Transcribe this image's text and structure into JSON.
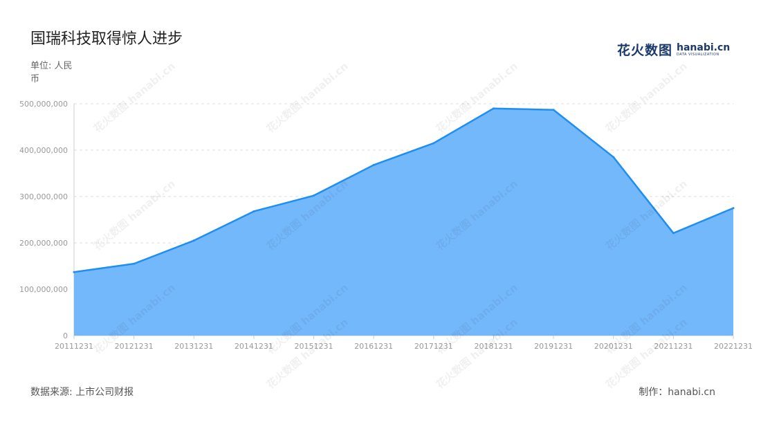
{
  "title": "国瑞科技取得惊人进步",
  "unit": "单位: 人民币",
  "source": "数据来源: 上市公司财报",
  "maker": "制作：hanabi.cn",
  "logo": {
    "cn": "花火数图",
    "en": "hanabi.cn",
    "sub": "DATA VISUALIZATION"
  },
  "watermark": "花火数图 hanabi.cn",
  "colors": {
    "line": "#1f8ef1",
    "fill": "#74b8fc",
    "grid": "#dddddd",
    "axis": "#cccccc"
  },
  "chart_data": {
    "type": "area",
    "title": "国瑞科技取得惊人进步",
    "xlabel": "",
    "ylabel": "单位: 人民币",
    "categories": [
      "20111231",
      "20121231",
      "20131231",
      "20141231",
      "20151231",
      "20161231",
      "20171231",
      "20181231",
      "20191231",
      "20201231",
      "20211231",
      "20221231"
    ],
    "series": [
      {
        "values": [
          137000000,
          155000000,
          205000000,
          268000000,
          302000000,
          368000000,
          415000000,
          490000000,
          487000000,
          385000000,
          221000000,
          275000000
        ]
      }
    ],
    "ylim": [
      0,
      500000000
    ],
    "yticks": [
      0,
      100000000,
      200000000,
      300000000,
      400000000,
      500000000
    ],
    "ytick_labels": [
      "0",
      "100,000,000",
      "200,000,000",
      "300,000,000",
      "400,000,000",
      "500,000,000"
    ],
    "grid": true,
    "legend": "none"
  }
}
